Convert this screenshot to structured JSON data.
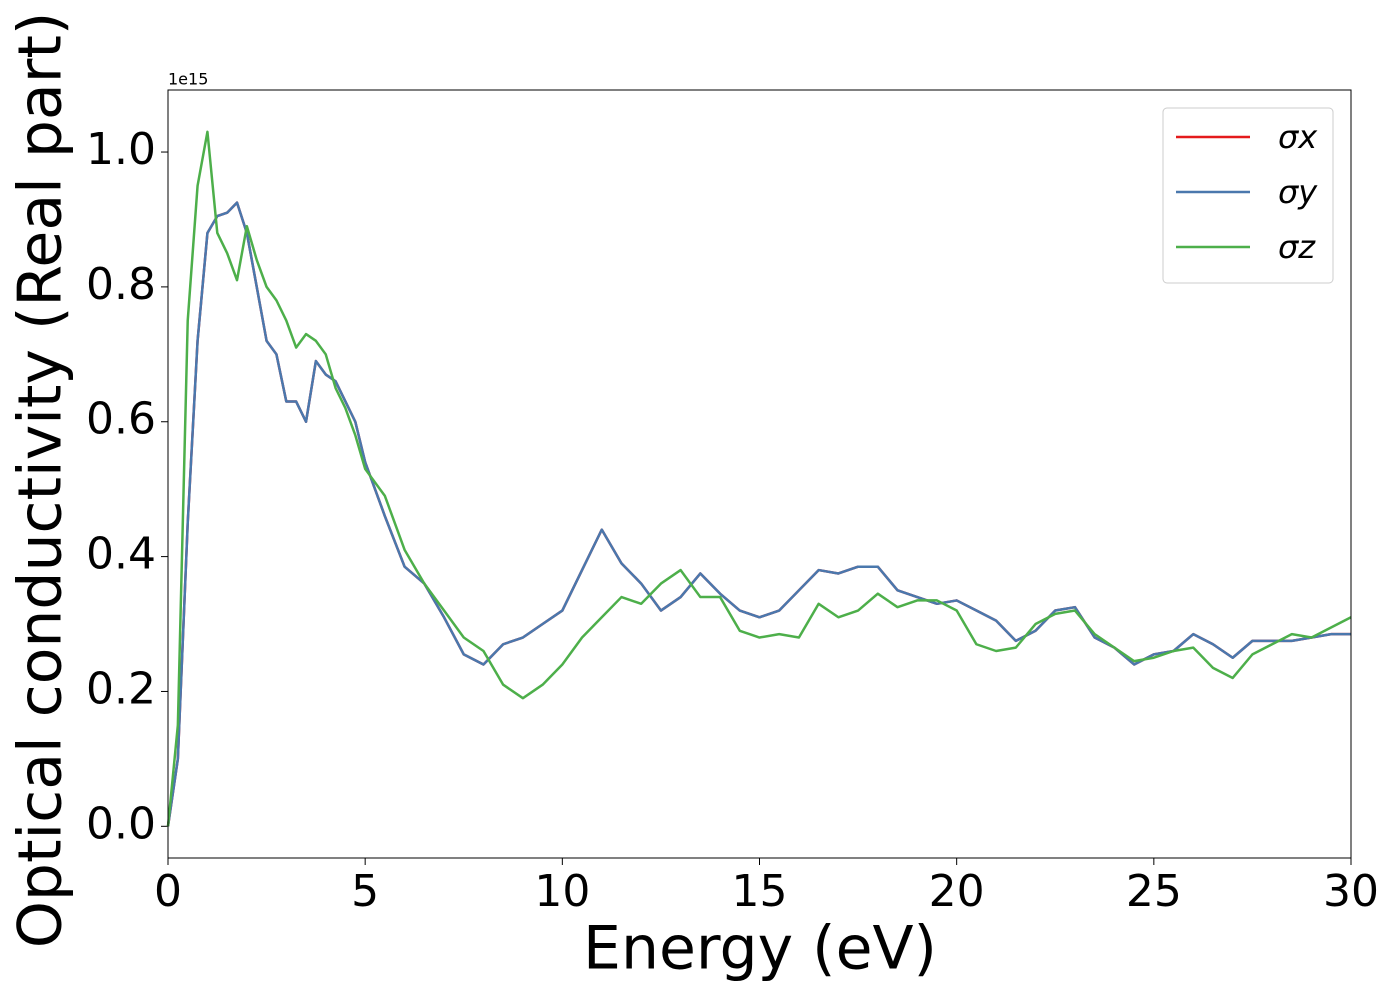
{
  "chart_data": {
    "type": "line",
    "xlabel": "Energy (eV)",
    "ylabel": "Optical conductivity (Real part)",
    "offset_label": "1e15",
    "xlim": [
      0,
      30
    ],
    "xticks": [
      0,
      5,
      10,
      15,
      20,
      25,
      30
    ],
    "ylim": [
      -0.047,
      1.092
    ],
    "yticks": [
      {
        "value": 0,
        "label": "0.0"
      },
      0.2,
      0.4,
      0.6,
      0.8,
      {
        "value": 1,
        "label": "1.0"
      }
    ],
    "legend": "upper right",
    "x": [
      0,
      0.25,
      0.5,
      0.75,
      1,
      1.25,
      1.5,
      1.75,
      2,
      2.25,
      2.5,
      2.75,
      3,
      3.25,
      3.5,
      3.75,
      4,
      4.25,
      4.5,
      4.75,
      5,
      5.5,
      6,
      6.5,
      7,
      7.5,
      8,
      8.5,
      9,
      9.5,
      10,
      10.5,
      11,
      11.5,
      12,
      12.5,
      13,
      13.5,
      14,
      14.5,
      15,
      15.5,
      16,
      16.5,
      17,
      17.5,
      18,
      18.5,
      19,
      19.5,
      20,
      20.5,
      21,
      21.5,
      22,
      22.5,
      23,
      23.5,
      24,
      24.5,
      25,
      25.5,
      26,
      26.5,
      27,
      27.5,
      28,
      28.5,
      29,
      29.5,
      30
    ],
    "series": [
      {
        "name": "σx",
        "color": "#e41a1c",
        "values": [
          0,
          0.1,
          0.45,
          0.72,
          0.88,
          0.905,
          0.91,
          0.925,
          0.88,
          0.8,
          0.72,
          0.7,
          0.63,
          0.63,
          0.6,
          0.69,
          0.67,
          0.66,
          0.63,
          0.6,
          0.54,
          0.46,
          0.385,
          0.36,
          0.31,
          0.255,
          0.24,
          0.27,
          0.28,
          0.3,
          0.32,
          0.38,
          0.44,
          0.39,
          0.36,
          0.32,
          0.34,
          0.375,
          0.345,
          0.32,
          0.31,
          0.32,
          0.35,
          0.38,
          0.375,
          0.385,
          0.385,
          0.35,
          0.34,
          0.33,
          0.335,
          0.32,
          0.305,
          0.275,
          0.29,
          0.32,
          0.325,
          0.28,
          0.265,
          0.24,
          0.255,
          0.26,
          0.285,
          0.27,
          0.25,
          0.275,
          0.275,
          0.275,
          0.28,
          0.285,
          0.285
        ]
      },
      {
        "name": "σy",
        "color": "#4a78ad",
        "values": [
          0,
          0.1,
          0.45,
          0.72,
          0.88,
          0.905,
          0.91,
          0.925,
          0.88,
          0.8,
          0.72,
          0.7,
          0.63,
          0.63,
          0.6,
          0.69,
          0.67,
          0.66,
          0.63,
          0.6,
          0.54,
          0.46,
          0.385,
          0.36,
          0.31,
          0.255,
          0.24,
          0.27,
          0.28,
          0.3,
          0.32,
          0.38,
          0.44,
          0.39,
          0.36,
          0.32,
          0.34,
          0.375,
          0.345,
          0.32,
          0.31,
          0.32,
          0.35,
          0.38,
          0.375,
          0.385,
          0.385,
          0.35,
          0.34,
          0.33,
          0.335,
          0.32,
          0.305,
          0.275,
          0.29,
          0.32,
          0.325,
          0.28,
          0.265,
          0.24,
          0.255,
          0.26,
          0.285,
          0.27,
          0.25,
          0.275,
          0.275,
          0.275,
          0.28,
          0.285,
          0.285
        ]
      },
      {
        "name": "σz",
        "color": "#4daf4a",
        "values": [
          0,
          0.15,
          0.75,
          0.95,
          1.03,
          0.88,
          0.85,
          0.81,
          0.89,
          0.84,
          0.8,
          0.78,
          0.75,
          0.71,
          0.73,
          0.72,
          0.7,
          0.65,
          0.62,
          0.58,
          0.53,
          0.49,
          0.41,
          0.36,
          0.32,
          0.28,
          0.26,
          0.21,
          0.19,
          0.21,
          0.24,
          0.28,
          0.31,
          0.34,
          0.33,
          0.36,
          0.38,
          0.34,
          0.34,
          0.29,
          0.28,
          0.285,
          0.28,
          0.33,
          0.31,
          0.32,
          0.345,
          0.325,
          0.335,
          0.335,
          0.32,
          0.27,
          0.26,
          0.265,
          0.3,
          0.315,
          0.32,
          0.285,
          0.265,
          0.245,
          0.25,
          0.26,
          0.265,
          0.235,
          0.22,
          0.255,
          0.27,
          0.285,
          0.28,
          0.295,
          0.31
        ]
      }
    ]
  }
}
